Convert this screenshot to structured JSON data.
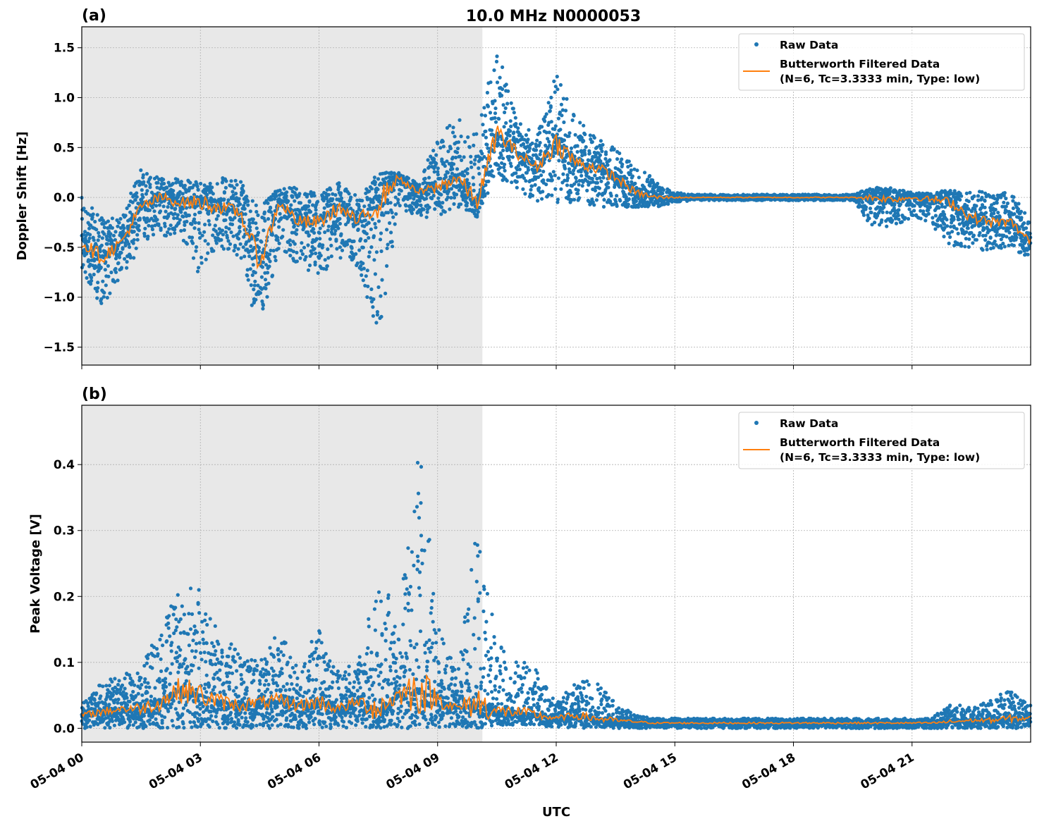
{
  "title": "10.0 MHz N0000053",
  "colors": {
    "raw": "#1f77b4",
    "filtered": "#ff7f0e",
    "shade": "#e8e8e8",
    "grid": "#b0b0b0"
  },
  "xlabel": "UTC",
  "x_ticks": [
    "05-04 00",
    "05-04 03",
    "05-04 06",
    "05-04 09",
    "05-04 12",
    "05-04 15",
    "05-04 18",
    "05-04 21"
  ],
  "chart_data": [
    {
      "type": "scatter",
      "panel_label": "(a)",
      "ylabel": "Doppler Shift [Hz]",
      "xlim": [
        "05-04 00:00",
        "05-05 00:00"
      ],
      "ylim": [
        -1.68,
        1.71
      ],
      "y_ticks": [
        1.5,
        1.0,
        0.5,
        0.0,
        -0.5,
        -1.0,
        -1.5
      ],
      "y_tick_labels": [
        "1.5",
        "1.0",
        "0.5",
        "0.0",
        "−0.5",
        "−1.0",
        "−1.5"
      ],
      "grid": true,
      "shaded_until": "05-04 10:08",
      "legend_placement": "upper-right",
      "legend": {
        "raw": "Raw Data",
        "filtered_1": "Butterworth Filtered Data",
        "filtered_2": "(N=6, Tc=3.3333 min, Type: low)"
      },
      "times": [
        "05-04 00:00",
        "05-04 00:30",
        "05-04 01:00",
        "05-04 01:30",
        "05-04 02:00",
        "05-04 02:30",
        "05-04 03:00",
        "05-04 03:30",
        "05-04 04:00",
        "05-04 04:30",
        "05-04 05:00",
        "05-04 05:30",
        "05-04 06:00",
        "05-04 06:30",
        "05-04 07:00",
        "05-04 07:30",
        "05-04 08:00",
        "05-04 08:30",
        "05-04 09:00",
        "05-04 09:30",
        "05-04 10:00",
        "05-04 10:30",
        "05-04 11:00",
        "05-04 11:30",
        "05-04 12:00",
        "05-04 12:30",
        "05-04 13:00",
        "05-04 13:30",
        "05-04 14:00",
        "05-04 14:30",
        "05-04 15:00",
        "05-04 15:30",
        "05-04 16:00",
        "05-04 16:30",
        "05-04 17:00",
        "05-04 17:30",
        "05-04 18:00",
        "05-04 18:30",
        "05-04 19:00",
        "05-04 19:30",
        "05-04 20:00",
        "05-04 20:30",
        "05-04 21:00",
        "05-04 21:30",
        "05-04 22:00",
        "05-04 22:30",
        "05-04 23:00",
        "05-04 23:30",
        "05-05 00:00"
      ],
      "filtered": [
        -0.45,
        -0.6,
        -0.45,
        -0.1,
        0.0,
        -0.05,
        -0.05,
        -0.1,
        -0.15,
        -0.65,
        -0.05,
        -0.25,
        -0.25,
        -0.1,
        -0.25,
        -0.05,
        0.2,
        0.05,
        0.1,
        0.2,
        -0.05,
        0.65,
        0.45,
        0.3,
        0.55,
        0.35,
        0.3,
        0.2,
        0.05,
        0.0,
        0.0,
        0.0,
        0.0,
        0.0,
        0.0,
        0.0,
        0.0,
        0.0,
        0.0,
        0.0,
        0.0,
        -0.02,
        0.0,
        -0.02,
        -0.05,
        -0.2,
        -0.25,
        -0.25,
        -0.45
      ],
      "raw_min": [
        -0.75,
        -1.1,
        -0.8,
        -0.5,
        -0.4,
        -0.4,
        -0.8,
        -0.5,
        -0.6,
        -1.4,
        -0.5,
        -0.7,
        -0.8,
        -0.6,
        -0.7,
        -1.5,
        -0.1,
        -0.2,
        -0.2,
        -0.1,
        -0.2,
        0.2,
        0.1,
        -0.05,
        -0.05,
        -0.05,
        -0.1,
        -0.1,
        -0.1,
        -0.1,
        -0.05,
        -0.03,
        -0.03,
        -0.03,
        -0.03,
        -0.03,
        -0.03,
        -0.03,
        -0.03,
        -0.03,
        -0.3,
        -0.3,
        -0.2,
        -0.3,
        -0.5,
        -0.5,
        -0.55,
        -0.5,
        -0.65
      ],
      "raw_max": [
        0.0,
        -0.2,
        -0.2,
        0.3,
        0.2,
        0.2,
        0.15,
        0.2,
        0.2,
        -0.1,
        0.1,
        0.1,
        0.05,
        0.15,
        0.0,
        0.25,
        0.25,
        0.15,
        0.6,
        0.8,
        0.7,
        1.5,
        0.8,
        0.6,
        1.25,
        0.8,
        0.6,
        0.5,
        0.3,
        0.2,
        0.05,
        0.03,
        0.03,
        0.03,
        0.03,
        0.03,
        0.03,
        0.03,
        0.03,
        0.03,
        0.1,
        0.1,
        0.05,
        0.05,
        0.1,
        0.1,
        0.05,
        0.05,
        -0.2
      ]
    },
    {
      "type": "scatter",
      "panel_label": "(b)",
      "ylabel": "Peak Voltage [V]",
      "xlim": [
        "05-04 00:00",
        "05-05 00:00"
      ],
      "ylim": [
        -0.021,
        0.49
      ],
      "y_ticks": [
        0.4,
        0.3,
        0.2,
        0.1,
        0.0
      ],
      "y_tick_labels": [
        "0.4",
        "0.3",
        "0.2",
        "0.1",
        "0.0"
      ],
      "grid": true,
      "shaded_until": "05-04 10:08",
      "legend_placement": "upper-right",
      "legend": {
        "raw": "Raw Data",
        "filtered_1": "Butterworth Filtered Data",
        "filtered_2": "(N=6, Tc=3.3333 min, Type: low)"
      },
      "times": [
        "05-04 00:00",
        "05-04 00:30",
        "05-04 01:00",
        "05-04 01:30",
        "05-04 02:00",
        "05-04 02:30",
        "05-04 03:00",
        "05-04 03:30",
        "05-04 04:00",
        "05-04 04:30",
        "05-04 05:00",
        "05-04 05:30",
        "05-04 06:00",
        "05-04 06:30",
        "05-04 07:00",
        "05-04 07:30",
        "05-04 08:00",
        "05-04 08:30",
        "05-04 09:00",
        "05-04 09:30",
        "05-04 10:00",
        "05-04 10:30",
        "05-04 11:00",
        "05-04 11:30",
        "05-04 12:00",
        "05-04 12:30",
        "05-04 13:00",
        "05-04 13:30",
        "05-04 14:00",
        "05-04 14:30",
        "05-04 15:00",
        "05-04 15:30",
        "05-04 16:00",
        "05-04 16:30",
        "05-04 17:00",
        "05-04 17:30",
        "05-04 18:00",
        "05-04 18:30",
        "05-04 19:00",
        "05-04 19:30",
        "05-04 20:00",
        "05-04 20:30",
        "05-04 21:00",
        "05-04 21:30",
        "05-04 22:00",
        "05-04 22:30",
        "05-04 23:00",
        "05-04 23:30",
        "05-05 00:00"
      ],
      "filtered": [
        0.02,
        0.025,
        0.03,
        0.03,
        0.04,
        0.06,
        0.05,
        0.04,
        0.035,
        0.04,
        0.04,
        0.035,
        0.04,
        0.03,
        0.04,
        0.03,
        0.05,
        0.06,
        0.045,
        0.03,
        0.04,
        0.025,
        0.025,
        0.02,
        0.015,
        0.02,
        0.015,
        0.012,
        0.01,
        0.008,
        0.008,
        0.008,
        0.008,
        0.008,
        0.008,
        0.008,
        0.008,
        0.008,
        0.008,
        0.008,
        0.008,
        0.008,
        0.008,
        0.008,
        0.01,
        0.012,
        0.012,
        0.015,
        0.015
      ],
      "raw_min": [
        0.0,
        0.0,
        0.0,
        0.0,
        0.0,
        0.0,
        0.0,
        0.0,
        0.0,
        0.0,
        0.0,
        0.0,
        0.0,
        0.0,
        0.0,
        0.0,
        0.0,
        0.0,
        0.0,
        0.0,
        0.0,
        0.005,
        0.005,
        0.005,
        0.0,
        0.0,
        0.0,
        0.0,
        0.0,
        0.0,
        0.0,
        0.0,
        0.0,
        0.0,
        0.0,
        0.0,
        0.0,
        0.0,
        0.0,
        0.0,
        0.0,
        0.0,
        0.0,
        0.0,
        0.0,
        0.0,
        0.0,
        0.0,
        0.0
      ],
      "raw_max": [
        0.04,
        0.07,
        0.08,
        0.1,
        0.15,
        0.22,
        0.21,
        0.14,
        0.12,
        0.1,
        0.15,
        0.1,
        0.15,
        0.09,
        0.1,
        0.27,
        0.14,
        0.47,
        0.16,
        0.08,
        0.31,
        0.13,
        0.11,
        0.09,
        0.04,
        0.07,
        0.075,
        0.04,
        0.02,
        0.015,
        0.015,
        0.015,
        0.015,
        0.015,
        0.015,
        0.015,
        0.015,
        0.015,
        0.015,
        0.015,
        0.015,
        0.015,
        0.015,
        0.015,
        0.04,
        0.03,
        0.045,
        0.065,
        0.035
      ]
    }
  ]
}
